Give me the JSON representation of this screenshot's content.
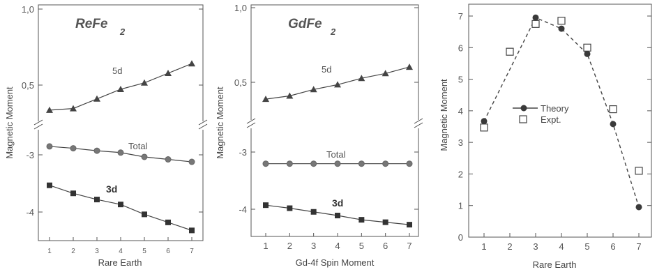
{
  "chart_data": [
    {
      "type": "line",
      "title": "ReFe",
      "title_sub": "2",
      "xlabel": "Rare Earth",
      "ylabel": "Magnetic Moment",
      "x": [
        1,
        2,
        3,
        4,
        5,
        6,
        7
      ],
      "xticks": [
        "1",
        "2",
        "3",
        "4",
        "5",
        "6",
        "7"
      ],
      "yticks_upper": [
        "1,0",
        "0,5"
      ],
      "yticks_lower": [
        "-3",
        "-4"
      ],
      "ylim_upper": [
        0.3,
        1.0
      ],
      "ylim_lower": [
        -4.35,
        -2.6
      ],
      "axis_break": true,
      "series": [
        {
          "name": "5d",
          "marker": "triangle",
          "values": [
            0.37,
            0.38,
            0.44,
            0.5,
            0.54,
            0.6,
            0.66
          ]
        },
        {
          "name": "Total",
          "marker": "circle",
          "values": [
            -2.87,
            -2.9,
            -2.94,
            -2.97,
            -3.04,
            -3.08,
            -3.12
          ]
        },
        {
          "name": "3d",
          "marker": "square",
          "values": [
            -3.5,
            -3.63,
            -3.73,
            -3.81,
            -3.97,
            -4.1,
            -4.23
          ]
        }
      ]
    },
    {
      "type": "line",
      "title": "GdFe",
      "title_sub": "2",
      "xlabel": "Gd-4f Spin Moment",
      "ylabel": "Magnetic Moment",
      "x": [
        1,
        2,
        3,
        4,
        5,
        6,
        7
      ],
      "xticks": [
        "1",
        "2",
        "3",
        "4",
        "5",
        "6",
        "7"
      ],
      "yticks_upper": [
        "1,0",
        "0,5"
      ],
      "yticks_lower": [
        "-3",
        "-4"
      ],
      "ylim_upper": [
        0.3,
        1.0
      ],
      "ylim_lower": [
        -4.35,
        -2.6
      ],
      "axis_break": true,
      "series": [
        {
          "name": "5d",
          "marker": "triangle",
          "values": [
            0.43,
            0.45,
            0.49,
            0.52,
            0.56,
            0.59,
            0.63
          ]
        },
        {
          "name": "Total",
          "marker": "circle",
          "values": [
            -3.18,
            -3.18,
            -3.18,
            -3.18,
            -3.18,
            -3.18,
            -3.18
          ]
        },
        {
          "name": "3d",
          "marker": "square",
          "values": [
            -3.86,
            -3.91,
            -3.97,
            -4.03,
            -4.1,
            -4.14,
            -4.18
          ]
        }
      ]
    },
    {
      "type": "line",
      "title": "",
      "xlabel": "Rare Earth",
      "ylabel": "Magnetic Moment",
      "x": [
        1,
        2,
        3,
        4,
        5,
        6,
        7
      ],
      "xticks": [
        "1",
        "2",
        "3",
        "4",
        "5",
        "6",
        "7"
      ],
      "yticks": [
        "0",
        "1",
        "2",
        "3",
        "4",
        "5",
        "6",
        "7"
      ],
      "xlim": [
        0.3,
        7.7
      ],
      "ylim": [
        0,
        7.4
      ],
      "legend_position": "center-left",
      "series": [
        {
          "name": "Theory",
          "marker": "filled-circle",
          "line": "dashed",
          "values": [
            3.67,
            null,
            6.95,
            6.6,
            5.8,
            3.58,
            0.95
          ]
        },
        {
          "name": "Expt.",
          "marker": "open-square",
          "line": "none",
          "values": [
            3.47,
            5.87,
            6.75,
            6.85,
            6.0,
            4.05,
            2.1
          ]
        }
      ]
    }
  ],
  "colors": {
    "ink": "#444444",
    "frame": "#555555",
    "background": "#ffffff"
  }
}
